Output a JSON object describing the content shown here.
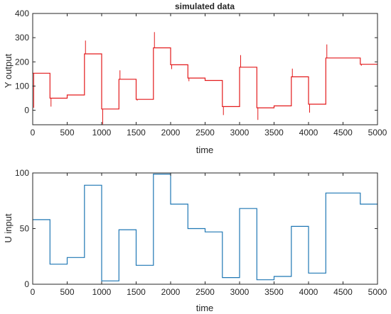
{
  "chart_data": [
    {
      "type": "line",
      "title": "simulated data",
      "xlabel": "time",
      "ylabel": "Y output",
      "xlim": [
        0,
        5000
      ],
      "ylim": [
        -60,
        400
      ],
      "x_ticks": [
        0,
        500,
        1000,
        1500,
        2000,
        2500,
        3000,
        3500,
        4000,
        4500,
        5000
      ],
      "y_ticks": [
        0,
        100,
        200,
        300,
        400
      ],
      "grid": false,
      "series": [
        {
          "color": "#e31a1c",
          "steps": [
            {
              "x0": 0,
              "x1": 250,
              "y": 153
            },
            {
              "x0": 250,
              "x1": 500,
              "y": 50
            },
            {
              "x0": 500,
              "x1": 750,
              "y": 63
            },
            {
              "x0": 750,
              "x1": 1000,
              "y": 233
            },
            {
              "x0": 1000,
              "x1": 1250,
              "y": 5
            },
            {
              "x0": 1250,
              "x1": 1500,
              "y": 128
            },
            {
              "x0": 1500,
              "x1": 1750,
              "y": 45
            },
            {
              "x0": 1750,
              "x1": 2000,
              "y": 258
            },
            {
              "x0": 2000,
              "x1": 2250,
              "y": 188
            },
            {
              "x0": 2250,
              "x1": 2500,
              "y": 133
            },
            {
              "x0": 2500,
              "x1": 2750,
              "y": 123
            },
            {
              "x0": 2750,
              "x1": 3000,
              "y": 15
            },
            {
              "x0": 3000,
              "x1": 3250,
              "y": 178
            },
            {
              "x0": 3250,
              "x1": 3500,
              "y": 10
            },
            {
              "x0": 3500,
              "x1": 3750,
              "y": 18
            },
            {
              "x0": 3750,
              "x1": 4000,
              "y": 138
            },
            {
              "x0": 4000,
              "x1": 4250,
              "y": 25
            },
            {
              "x0": 4250,
              "x1": 4750,
              "y": 216
            },
            {
              "x0": 4750,
              "x1": 5000,
              "y": 190
            }
          ],
          "spikes": [
            {
              "x": 0,
              "y": 10
            },
            {
              "x": 250,
              "y": 15
            },
            {
              "x": 750,
              "y": 288
            },
            {
              "x": 1000,
              "y": -58
            },
            {
              "x": 1250,
              "y": 165
            },
            {
              "x": 1500,
              "y": 40
            },
            {
              "x": 1750,
              "y": 323
            },
            {
              "x": 2000,
              "y": 170
            },
            {
              "x": 2250,
              "y": 120
            },
            {
              "x": 2750,
              "y": -20
            },
            {
              "x": 3000,
              "y": 228
            },
            {
              "x": 3250,
              "y": -40
            },
            {
              "x": 3750,
              "y": 172
            },
            {
              "x": 4000,
              "y": -10
            },
            {
              "x": 4250,
              "y": 272
            },
            {
              "x": 4750,
              "y": 184
            }
          ]
        }
      ]
    },
    {
      "type": "line",
      "title": "",
      "xlabel": "time",
      "ylabel": "U input",
      "xlim": [
        0,
        5000
      ],
      "ylim": [
        0,
        100
      ],
      "x_ticks": [
        0,
        500,
        1000,
        1500,
        2000,
        2500,
        3000,
        3500,
        4000,
        4500,
        5000
      ],
      "y_ticks": [
        0,
        50,
        100
      ],
      "grid": false,
      "series": [
        {
          "color": "#1f77b4",
          "steps": [
            {
              "x0": 0,
              "x1": 250,
              "y": 58
            },
            {
              "x0": 250,
              "x1": 500,
              "y": 18
            },
            {
              "x0": 500,
              "x1": 750,
              "y": 24
            },
            {
              "x0": 750,
              "x1": 1000,
              "y": 89
            },
            {
              "x0": 1000,
              "x1": 1250,
              "y": 3
            },
            {
              "x0": 1250,
              "x1": 1500,
              "y": 49
            },
            {
              "x0": 1500,
              "x1": 1750,
              "y": 17
            },
            {
              "x0": 1750,
              "x1": 2000,
              "y": 99
            },
            {
              "x0": 2000,
              "x1": 2250,
              "y": 72
            },
            {
              "x0": 2250,
              "x1": 2500,
              "y": 50
            },
            {
              "x0": 2500,
              "x1": 2750,
              "y": 47
            },
            {
              "x0": 2750,
              "x1": 3000,
              "y": 6
            },
            {
              "x0": 3000,
              "x1": 3250,
              "y": 68
            },
            {
              "x0": 3250,
              "x1": 3500,
              "y": 4
            },
            {
              "x0": 3500,
              "x1": 3750,
              "y": 7
            },
            {
              "x0": 3750,
              "x1": 4000,
              "y": 52
            },
            {
              "x0": 4000,
              "x1": 4250,
              "y": 10
            },
            {
              "x0": 4250,
              "x1": 4750,
              "y": 82
            },
            {
              "x0": 4750,
              "x1": 5000,
              "y": 72
            }
          ]
        }
      ]
    }
  ]
}
